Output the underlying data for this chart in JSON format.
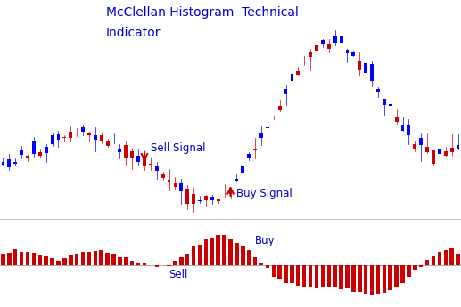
{
  "title_line1": "McClellan Histogram  Technical",
  "title_line2": "Indicator",
  "title_color": "#0000cc",
  "title_fontsize": 10,
  "background_color": "#ffffff",
  "candle_up_color": "#0000ff",
  "candle_down_color": "#cc0000",
  "hist_color": "#cc0000",
  "sell_signal_text": "Sell Signal",
  "buy_signal_text": "Buy Signal",
  "buy_label": "Buy",
  "sell_label": "Sell",
  "signal_color": "#0000cc",
  "arrow_color": "#cc0000",
  "n_candles": 75,
  "sell_candle_idx": 22,
  "buy_candle_idx": 36
}
